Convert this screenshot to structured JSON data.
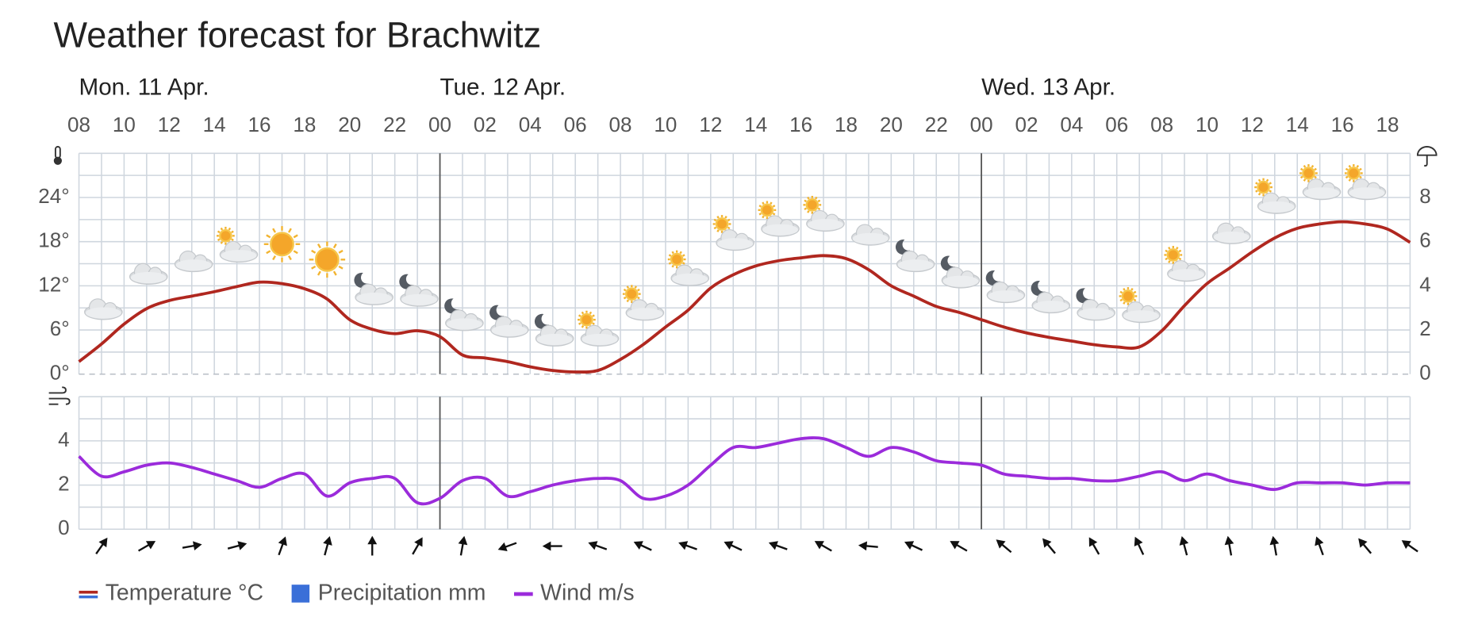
{
  "chart_data": {
    "type": "line",
    "title": "Weather forecast for Brachwitz",
    "days": [
      "Mon. 11 Apr.",
      "Tue. 12 Apr.",
      "Wed. 13 Apr."
    ],
    "categories": [
      "08",
      null,
      "10",
      null,
      "12",
      null,
      "14",
      null,
      "16",
      null,
      "18",
      null,
      "20",
      null,
      "22",
      null,
      "00",
      null,
      "02",
      null,
      "04",
      null,
      "06",
      null,
      "08",
      null,
      "10",
      null,
      "12",
      null,
      "14",
      null,
      "16",
      null,
      "18",
      null,
      "20",
      null,
      "22",
      null,
      "00",
      null,
      "02",
      null,
      "04",
      null,
      "06",
      null,
      "08",
      null,
      "10",
      null,
      "12",
      null,
      "14",
      null,
      "16",
      null,
      "18",
      null
    ],
    "ylim": [
      0,
      30
    ],
    "yticks": [
      {
        "value": 0,
        "label": "0°"
      },
      {
        "value": 6,
        "label": "6°"
      },
      {
        "value": 12,
        "label": "12°"
      },
      {
        "value": 18,
        "label": "18°"
      },
      {
        "value": 24,
        "label": "24°"
      }
    ],
    "y2lim": [
      0,
      10
    ],
    "y2ticks": [
      0,
      2,
      4,
      6,
      8
    ],
    "grid": true,
    "series": [
      {
        "name": "Temperature °C",
        "color": "#b0271f",
        "type": "line",
        "values": [
          1.7,
          4.1,
          6.8,
          8.9,
          10.0,
          10.6,
          11.2,
          11.9,
          12.5,
          12.3,
          11.6,
          10.2,
          7.4,
          6.1,
          5.5,
          5.9,
          5.1,
          2.6,
          2.2,
          1.7,
          1.0,
          0.5,
          0.3,
          0.5,
          2.0,
          4.0,
          6.4,
          8.7,
          11.7,
          13.5,
          14.7,
          15.4,
          15.8,
          16.1,
          15.7,
          14.2,
          12.0,
          10.6,
          9.2,
          8.4,
          7.4,
          6.4,
          5.6,
          5.0,
          4.5,
          4.0,
          3.7,
          3.7,
          5.9,
          9.3,
          12.3,
          14.4,
          16.6,
          18.5,
          19.8,
          20.4,
          20.7,
          20.4,
          19.7,
          17.9
        ]
      },
      {
        "name": "Precipitation mm",
        "color": "#3a6fd8",
        "type": "bar",
        "axis": "y2",
        "values": [
          0,
          0,
          0,
          0,
          0,
          0,
          0,
          0,
          0,
          0,
          0,
          0,
          0,
          0,
          0,
          0,
          0,
          0,
          0,
          0,
          0,
          0,
          0,
          0,
          0,
          0,
          0,
          0,
          0,
          0,
          0,
          0,
          0,
          0,
          0,
          0,
          0,
          0,
          0,
          0,
          0,
          0,
          0,
          0,
          0,
          0,
          0,
          0,
          0,
          0,
          0,
          0,
          0,
          0,
          0,
          0,
          0,
          0,
          0,
          0
        ]
      }
    ],
    "weather_symbols": [
      null,
      "cloud",
      null,
      "cloud",
      null,
      "cloud",
      null,
      "sun-cloud",
      null,
      "sun",
      null,
      "sun",
      null,
      "moon-cloud",
      null,
      "moon-cloud",
      null,
      "moon-cloud",
      null,
      "moon-cloud",
      null,
      "moon-cloud",
      null,
      "sun-cloud",
      null,
      "sun-cloud",
      null,
      "sun-cloud",
      null,
      "sun-cloud",
      null,
      "sun-cloud",
      null,
      "sun-cloud",
      null,
      "cloud",
      null,
      "moon-cloud",
      null,
      "moon-cloud",
      null,
      "moon-cloud",
      null,
      "moon-cloud",
      null,
      "moon-cloud",
      null,
      "sun-cloud",
      null,
      "sun-cloud",
      null,
      "cloud",
      null,
      "sun-cloud",
      null,
      "sun-cloud",
      null,
      "sun-cloud",
      null,
      null
    ],
    "wind": {
      "type": "line",
      "ylim": [
        0,
        6
      ],
      "yticks": [
        0,
        2,
        4
      ],
      "series": [
        {
          "name": "Wind m/s",
          "color": "#9b2bdb",
          "values": [
            3.3,
            2.4,
            2.6,
            2.9,
            3.0,
            2.8,
            2.5,
            2.2,
            1.9,
            2.3,
            2.5,
            1.5,
            2.1,
            2.3,
            2.3,
            1.2,
            1.4,
            2.2,
            2.3,
            1.5,
            1.7,
            2.0,
            2.2,
            2.3,
            2.2,
            1.4,
            1.5,
            2.0,
            2.9,
            3.7,
            3.7,
            3.9,
            4.1,
            4.1,
            3.7,
            3.3,
            3.7,
            3.5,
            3.1,
            3.0,
            2.9,
            2.5,
            2.4,
            2.3,
            2.3,
            2.2,
            2.2,
            2.4,
            2.6,
            2.2,
            2.5,
            2.2,
            2.0,
            1.8,
            2.1,
            2.1,
            2.1,
            2.0,
            2.1,
            2.1
          ]
        }
      ],
      "direction_deg": [
        null,
        215,
        null,
        240,
        null,
        260,
        null,
        255,
        null,
        200,
        null,
        195,
        null,
        180,
        null,
        210,
        null,
        190,
        null,
        70,
        null,
        90,
        null,
        110,
        null,
        115,
        null,
        110,
        null,
        115,
        null,
        110,
        null,
        120,
        null,
        95,
        null,
        115,
        null,
        120,
        null,
        130,
        null,
        140,
        null,
        150,
        null,
        155,
        null,
        165,
        null,
        170,
        null,
        170,
        null,
        160,
        null,
        140,
        null,
        125
      ]
    }
  }
}
